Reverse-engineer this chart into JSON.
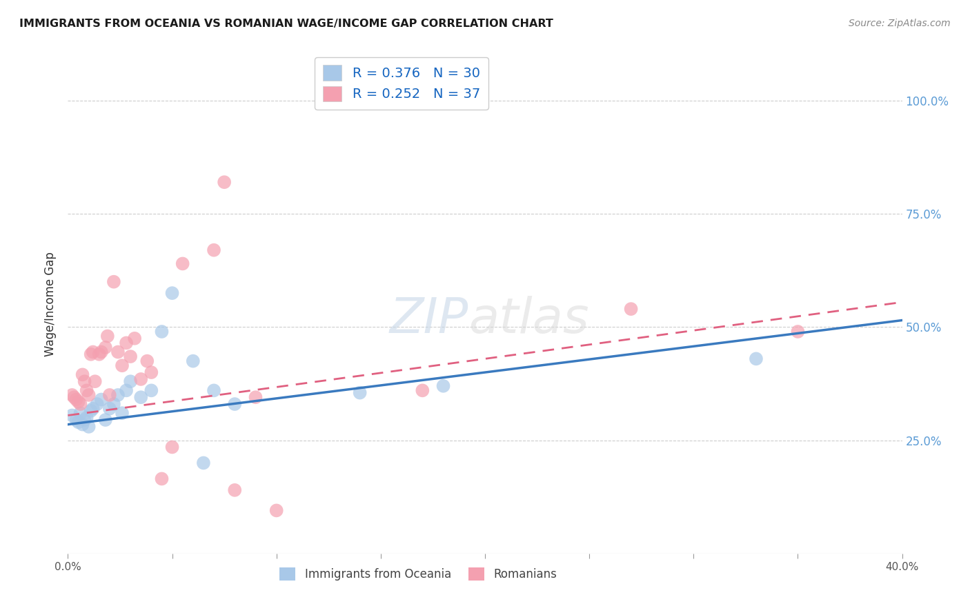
{
  "title": "IMMIGRANTS FROM OCEANIA VS ROMANIAN WAGE/INCOME GAP CORRELATION CHART",
  "source": "Source: ZipAtlas.com",
  "ylabel": "Wage/Income Gap",
  "xlim": [
    0.0,
    0.4
  ],
  "ylim": [
    0.0,
    1.1
  ],
  "y_ticks": [
    0.25,
    0.5,
    0.75,
    1.0
  ],
  "y_tick_labels": [
    "25.0%",
    "50.0%",
    "75.0%",
    "100.0%"
  ],
  "legend_r1": "R = 0.376",
  "legend_n1": "N = 30",
  "legend_r2": "R = 0.252",
  "legend_n2": "N = 37",
  "legend_label1": "Immigrants from Oceania",
  "legend_label2": "Romanians",
  "blue_color": "#a8c8e8",
  "pink_color": "#f4a0b0",
  "blue_line_color": "#3a7abf",
  "pink_line_color": "#e06080",
  "background_color": "#ffffff",
  "grid_color": "#cccccc",
  "watermark": "ZIPatlas",
  "blue_scatter_x": [
    0.002,
    0.004,
    0.005,
    0.006,
    0.007,
    0.008,
    0.009,
    0.01,
    0.011,
    0.012,
    0.014,
    0.016,
    0.018,
    0.02,
    0.022,
    0.024,
    0.026,
    0.028,
    0.03,
    0.035,
    0.04,
    0.045,
    0.05,
    0.06,
    0.065,
    0.07,
    0.08,
    0.14,
    0.18,
    0.33
  ],
  "blue_scatter_y": [
    0.305,
    0.295,
    0.29,
    0.31,
    0.285,
    0.295,
    0.3,
    0.28,
    0.315,
    0.32,
    0.33,
    0.34,
    0.295,
    0.32,
    0.33,
    0.35,
    0.31,
    0.36,
    0.38,
    0.345,
    0.36,
    0.49,
    0.575,
    0.425,
    0.2,
    0.36,
    0.33,
    0.355,
    0.37,
    0.43
  ],
  "pink_scatter_x": [
    0.002,
    0.003,
    0.004,
    0.005,
    0.006,
    0.007,
    0.008,
    0.009,
    0.01,
    0.011,
    0.012,
    0.013,
    0.015,
    0.016,
    0.018,
    0.019,
    0.02,
    0.022,
    0.024,
    0.026,
    0.028,
    0.03,
    0.032,
    0.035,
    0.038,
    0.04,
    0.045,
    0.05,
    0.055,
    0.07,
    0.075,
    0.08,
    0.09,
    0.1,
    0.17,
    0.27,
    0.35
  ],
  "pink_scatter_y": [
    0.35,
    0.345,
    0.34,
    0.335,
    0.33,
    0.395,
    0.38,
    0.36,
    0.35,
    0.44,
    0.445,
    0.38,
    0.44,
    0.445,
    0.455,
    0.48,
    0.35,
    0.6,
    0.445,
    0.415,
    0.465,
    0.435,
    0.475,
    0.385,
    0.425,
    0.4,
    0.165,
    0.235,
    0.64,
    0.67,
    0.82,
    0.14,
    0.345,
    0.095,
    0.36,
    0.54,
    0.49
  ],
  "blue_trend_x": [
    0.0,
    0.4
  ],
  "blue_trend_y": [
    0.285,
    0.515
  ],
  "pink_trend_x": [
    0.0,
    0.4
  ],
  "pink_trend_y": [
    0.305,
    0.555
  ]
}
